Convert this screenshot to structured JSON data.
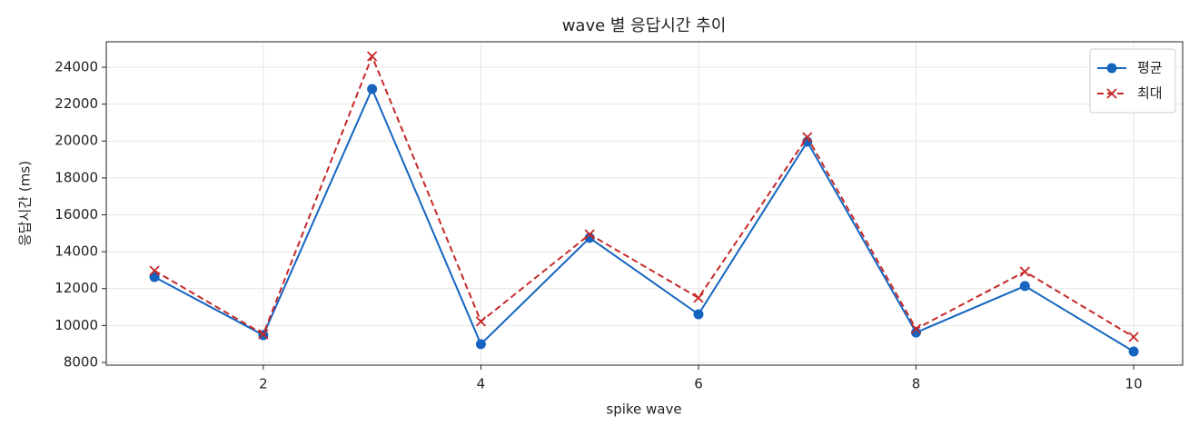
{
  "chart_data": {
    "type": "line",
    "title": "wave 별 응답시간 추이",
    "x_label": "spike wave",
    "y_label": "응답시간 (ms)",
    "x": [
      1,
      2,
      3,
      4,
      5,
      6,
      7,
      8,
      9,
      10
    ],
    "series": [
      {
        "name": "평균",
        "color": "#1565c0",
        "linestyle": "solid",
        "marker": "circle",
        "values": [
          12630,
          9480,
          22820,
          8990,
          14750,
          10610,
          19960,
          9620,
          12140,
          8590
        ]
      },
      {
        "name": "최대",
        "color": "#c62828",
        "linestyle": "dashed",
        "marker": "x",
        "values": [
          12970,
          9530,
          24590,
          10220,
          14940,
          11500,
          20210,
          9820,
          12920,
          9380
        ]
      }
    ],
    "xlim": [
      0.557,
      10.45
    ],
    "xticks": [
      2,
      4,
      6,
      8,
      10
    ],
    "ylim": [
      7852,
      25378
    ],
    "yticks": [
      8000,
      10000,
      12000,
      14000,
      16000,
      18000,
      20000,
      22000,
      24000
    ],
    "grid": true,
    "legend": "upper-right"
  }
}
